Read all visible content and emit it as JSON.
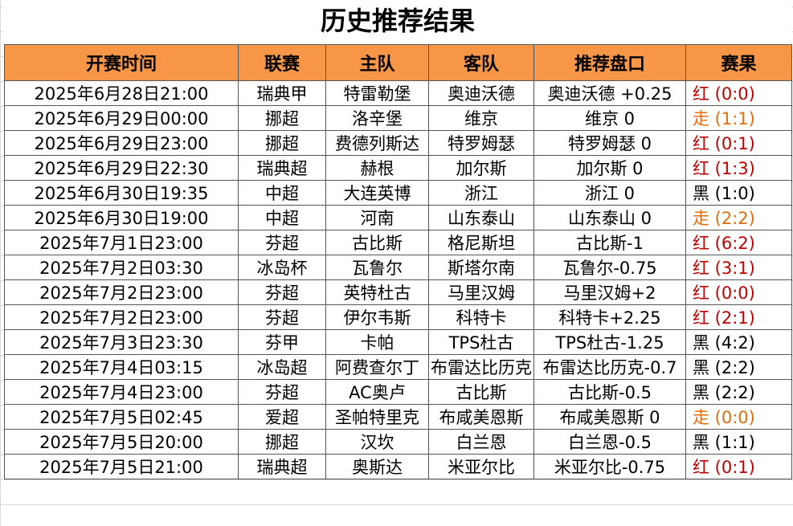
{
  "title": "历史推荐结果",
  "table": {
    "header": [
      "开赛时间",
      "联赛",
      "主队",
      "客队",
      "推荐盘口",
      "赛果"
    ],
    "header_color": "#f79646",
    "rows": [
      [
        "2025年6月28日21:00",
        "瑞典甲",
        "特雷勒堡",
        "奥迪沃德",
        "奥迪沃德 +0.25",
        "红 (0:0)"
      ],
      [
        "2025年6月29日00:00",
        "挪超",
        "洛辛堡",
        "维京",
        "维京 0",
        "走 (1:1)"
      ],
      [
        "2025年6月29日23:00",
        "挪超",
        "费德列斯达",
        "特罗姆瑟",
        "特罗姆瑟 0",
        "红 (0:1)"
      ],
      [
        "2025年6月29日22:30",
        "瑞典超",
        "赫根",
        "加尔斯",
        "加尔斯 0",
        "红 (1:3)"
      ],
      [
        "2025年6月30日19:35",
        "中超",
        "大连英博",
        "浙江",
        "浙江 0",
        "黑 (1:0)"
      ],
      [
        "2025年6月30日19:00",
        "中超",
        "河南",
        "山东泰山",
        "山东泰山 0",
        "走 (2:2)"
      ],
      [
        "2025年7月1日23:00",
        "芬超",
        "古比斯",
        "格尼斯坦",
        "古比斯-1",
        "红 (6:2)"
      ],
      [
        "2025年7月2日03:30",
        "冰岛杯",
        "瓦鲁尔",
        "斯塔尔南",
        "瓦鲁尔-0.75",
        "红 (3:1)"
      ],
      [
        "2025年7月2日23:00",
        "芬超",
        "英特杜古",
        "马里汉姆",
        "马里汉姆+2",
        "红 (0:0)"
      ],
      [
        "2025年7月2日23:00",
        "芬超",
        "伊尔韦斯",
        "科特卡",
        "科特卡+2.25",
        "红 (2:1)"
      ],
      [
        "2025年7月3日23:30",
        "芬甲",
        "卡帕",
        "TPS杜古",
        "TPS杜古-1.25",
        "黑 (4:2)"
      ],
      [
        "2025年7月4日03:15",
        "冰岛超",
        "阿费查尔丁",
        "布雷达比历克",
        "布雷达比历克-0.7",
        "黑 (2:2)"
      ],
      [
        "2025年7月4日23:00",
        "芬超",
        "AC奥卢",
        "古比斯",
        "古比斯-0.5",
        "黑 (2:2)"
      ],
      [
        "2025年7月5日02:45",
        "爱超",
        "圣帕特里克",
        "布咸美恩斯",
        "布咸美恩斯 0",
        "走 (0:0)"
      ],
      [
        "2025年7月5日20:00",
        "挪超",
        "汉坎",
        "白兰恩",
        "白兰恩-0.5",
        "黑 (1:1)"
      ],
      [
        "2025年7月5日21:00",
        "瑞典超",
        "奥斯达",
        "米亚尔比",
        "米亚尔比-0.75",
        "红 (0:1)"
      ]
    ],
    "result_colors": [
      "#c00000",
      "#e46c0a",
      "#c00000",
      "#c00000",
      "#000000",
      "#e46c0a",
      "#c00000",
      "#c00000",
      "#c00000",
      "#c00000",
      "#000000",
      "#000000",
      "#000000",
      "#e46c0a",
      "#000000",
      "#c00000"
    ]
  }
}
